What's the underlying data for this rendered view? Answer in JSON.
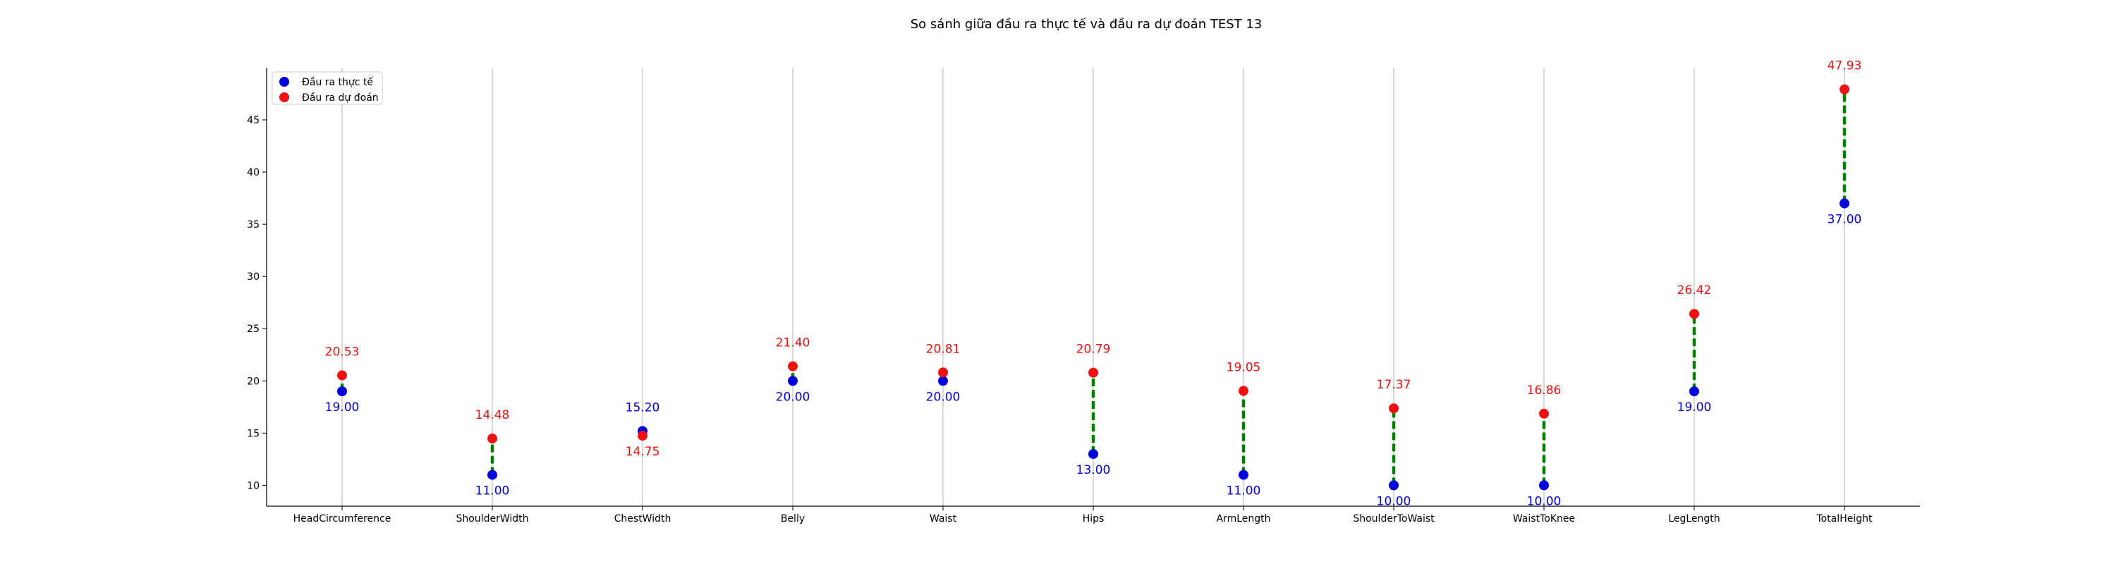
{
  "chart_data": {
    "type": "scatter",
    "title": "So sánh giữa đầu ra thực tế và đầu ra dự đoán TEST 13",
    "xlabel": "",
    "ylabel": "",
    "categories": [
      "HeadCircumference",
      "ShoulderWidth",
      "ChestWidth",
      "Belly",
      "Waist",
      "Hips",
      "ArmLength",
      "ShoulderToWaist",
      "WaistToKnee",
      "LegLength",
      "TotalHeight"
    ],
    "yticks": [
      10,
      15,
      20,
      25,
      30,
      35,
      40,
      45
    ],
    "ylim": [
      8,
      50
    ],
    "grid": "vertical",
    "legend_position": "top-left",
    "series": [
      {
        "name": "Đầu ra thực tế",
        "color": "#0000dd",
        "values": [
          19.0,
          11.0,
          15.2,
          20.0,
          20.0,
          13.0,
          11.0,
          10.0,
          10.0,
          19.0,
          37.0
        ],
        "labels": [
          "19.00",
          "11.00",
          "15.20",
          "20.00",
          "20.00",
          "13.00",
          "11.00",
          "10.00",
          "10.00",
          "19.00",
          "37.00"
        ]
      },
      {
        "name": "Đầu ra dự đoán",
        "color": "#ee1111",
        "values": [
          20.53,
          14.48,
          14.75,
          21.4,
          20.81,
          20.79,
          19.05,
          17.37,
          16.86,
          26.42,
          47.93
        ],
        "labels": [
          "20.53",
          "14.48",
          "14.75",
          "21.40",
          "20.81",
          "20.79",
          "19.05",
          "17.37",
          "16.86",
          "26.42",
          "47.93"
        ]
      }
    ],
    "connector_color": "#008000",
    "grid_color": "#b0b0b0"
  }
}
